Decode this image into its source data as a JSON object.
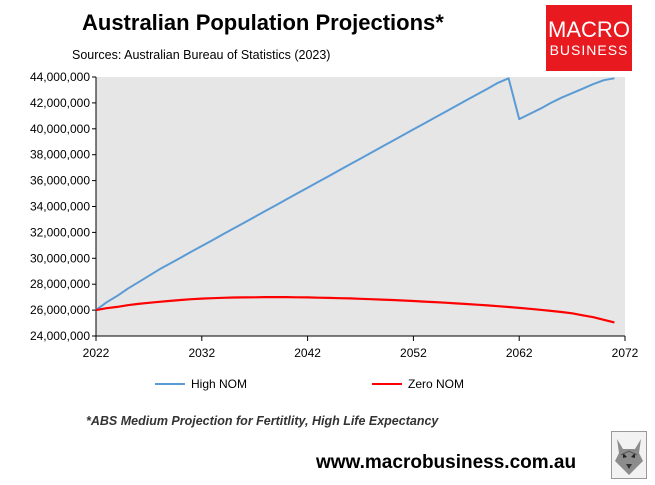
{
  "header": {
    "title": "Australian Population Projections*",
    "subtitle": "Sources: Australian Bureau of Statistics (2023)"
  },
  "logo": {
    "top": "MACRO",
    "bottom": "BUSINESS",
    "color": "#e8191f"
  },
  "footnote": "*ABS Medium Projection for Fertitlity, High Life Expectancy",
  "website": "www.macrobusiness.com.au",
  "chart_data": {
    "type": "line",
    "title": "Australian Population Projections*",
    "xlabel": "",
    "ylabel": "",
    "xlim": [
      2022,
      2072
    ],
    "ylim": [
      24000000,
      44000000
    ],
    "x_ticks": [
      "2022",
      "2032",
      "2042",
      "2052",
      "2062",
      "2072"
    ],
    "y_ticks": [
      "24,000,000",
      "26,000,000",
      "28,000,000",
      "30,000,000",
      "32,000,000",
      "34,000,000",
      "36,000,000",
      "38,000,000",
      "40,000,000",
      "42,000,000",
      "44,000,000"
    ],
    "grid": false,
    "legend": "bottom",
    "series": [
      {
        "name": "High NOM",
        "color": "#5b9bd5",
        "x": [
          2022,
          2023,
          2024,
          2025,
          2026,
          2027,
          2028,
          2029,
          2030,
          2031,
          2032,
          2033,
          2034,
          2035,
          2036,
          2037,
          2038,
          2039,
          2040,
          2041,
          2042,
          2043,
          2044,
          2045,
          2046,
          2047,
          2048,
          2049,
          2050,
          2051,
          2052,
          2053,
          2054,
          2055,
          2056,
          2057,
          2058,
          2059,
          2060,
          2061,
          2062,
          2063,
          2064,
          2065,
          2066,
          2067,
          2068,
          2069,
          2070,
          2071
        ],
        "values": [
          26000000,
          26600000,
          27100000,
          27650000,
          28150000,
          28650000,
          29150000,
          29600000,
          30050000,
          30500000,
          30950000,
          31400000,
          31850000,
          32300000,
          32750000,
          33200000,
          33650000,
          34100000,
          34550000,
          35000000,
          35450000,
          35900000,
          36350000,
          36800000,
          37250000,
          37700000,
          38150000,
          38600000,
          39050000,
          39500000,
          39950000,
          40400000,
          40850000,
          41300000,
          41750000,
          42200000,
          42650000,
          43100000,
          43550000,
          43900000,
          40750000,
          41150000,
          41550000,
          42000000,
          42400000,
          42750000,
          43100000,
          43450000,
          43750000,
          43900000
        ]
      },
      {
        "name": "Zero NOM",
        "color": "#ff0000",
        "x": [
          2022,
          2023,
          2024,
          2025,
          2026,
          2027,
          2028,
          2029,
          2030,
          2031,
          2032,
          2033,
          2034,
          2035,
          2036,
          2037,
          2038,
          2039,
          2040,
          2041,
          2042,
          2043,
          2044,
          2045,
          2046,
          2047,
          2048,
          2049,
          2050,
          2051,
          2052,
          2053,
          2054,
          2055,
          2056,
          2057,
          2058,
          2059,
          2060,
          2061,
          2062,
          2063,
          2064,
          2065,
          2066,
          2067,
          2068,
          2069,
          2070,
          2071
        ],
        "values": [
          26000000,
          26150000,
          26250000,
          26380000,
          26480000,
          26560000,
          26640000,
          26710000,
          26780000,
          26840000,
          26890000,
          26920000,
          26950000,
          26970000,
          26980000,
          26990000,
          27000000,
          27000000,
          27000000,
          26990000,
          26980000,
          26960000,
          26940000,
          26920000,
          26900000,
          26870000,
          26840000,
          26810000,
          26780000,
          26740000,
          26700000,
          26660000,
          26620000,
          26570000,
          26520000,
          26470000,
          26420000,
          26360000,
          26300000,
          26240000,
          26170000,
          26100000,
          26020000,
          25940000,
          25850000,
          25750000,
          25600000,
          25450000,
          25250000,
          25050000
        ]
      }
    ]
  }
}
